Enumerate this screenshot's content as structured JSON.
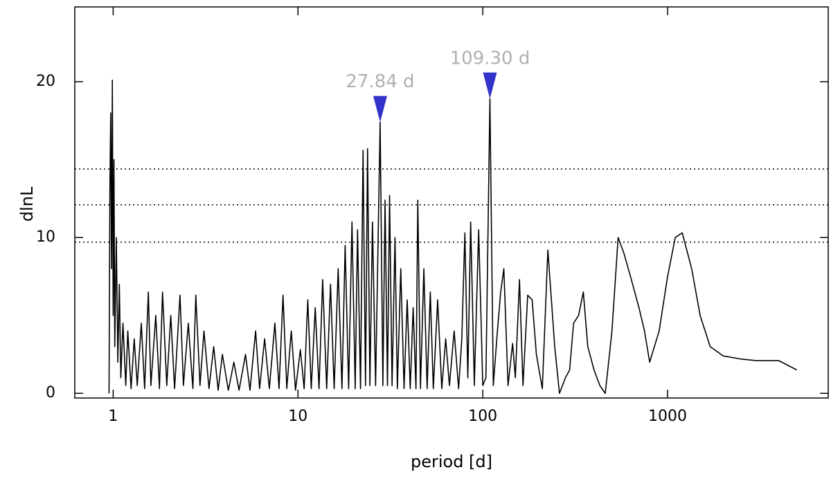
{
  "chart_data": {
    "type": "line",
    "xlabel": "period [d]",
    "ylabel": "dlnL",
    "xscale": "log",
    "color": "#000000",
    "xlim": [
      0.62,
      7400
    ],
    "ylim": [
      -0.3,
      24.8
    ],
    "xticks": [
      1,
      10,
      100,
      1000
    ],
    "yticks": [
      0,
      10,
      20
    ],
    "thresholds": [
      9.7,
      12.1,
      14.4
    ],
    "annotations": [
      {
        "label": "27.84 d",
        "x": 27.84,
        "y": 17.4,
        "color": "#3333cc"
      },
      {
        "label": "109.30 d",
        "x": 109.3,
        "y": 18.9,
        "color": "#3333cc"
      }
    ],
    "x": [
      0.95,
      0.96,
      0.97,
      0.98,
      0.99,
      1.0,
      1.01,
      1.02,
      1.04,
      1.06,
      1.08,
      1.1,
      1.13,
      1.17,
      1.2,
      1.25,
      1.3,
      1.35,
      1.42,
      1.48,
      1.55,
      1.6,
      1.7,
      1.78,
      1.85,
      1.95,
      2.05,
      2.15,
      2.3,
      2.4,
      2.55,
      2.7,
      2.8,
      2.95,
      3.1,
      3.3,
      3.5,
      3.7,
      3.9,
      4.2,
      4.5,
      4.8,
      5.2,
      5.5,
      5.9,
      6.2,
      6.6,
      7.0,
      7.5,
      7.9,
      8.3,
      8.7,
      9.2,
      9.7,
      10.3,
      10.8,
      11.3,
      11.8,
      12.4,
      13,
      13.6,
      14.3,
      15,
      15.7,
      16.5,
      17.3,
      18,
      18.8,
      19.6,
      20.4,
      21,
      21.8,
      22.5,
      23.2,
      23.8,
      24.5,
      25.3,
      26.3,
      27.84,
      28.8,
      29.6,
      30.5,
      31.3,
      32.3,
      33.5,
      34.5,
      36,
      37.5,
      39,
      40.5,
      42,
      43.5,
      44.5,
      46,
      48,
      50,
      52,
      54,
      57,
      60,
      63,
      66,
      70,
      74,
      77,
      80,
      83,
      86,
      90,
      95,
      100,
      104,
      109.3,
      114,
      120,
      125,
      130,
      137,
      145,
      150,
      158,
      165,
      175,
      185,
      195,
      210,
      225,
      245,
      260,
      280,
      295,
      310,
      330,
      350,
      370,
      400,
      430,
      460,
      500,
      540,
      580,
      630,
      700,
      750,
      800,
      900,
      1000,
      1100,
      1200,
      1350,
      1500,
      1700,
      2000,
      2500,
      3000,
      4000,
      5000
    ],
    "values": [
      0,
      13,
      18,
      8,
      20.1,
      5,
      15,
      3,
      10,
      2,
      7,
      1,
      4.5,
      0.5,
      4,
      0.3,
      3.5,
      0.5,
      4.5,
      0.3,
      6.5,
      0.5,
      5,
      0.3,
      6.5,
      0.5,
      5,
      0.3,
      6.3,
      0.5,
      4.5,
      0.3,
      6.3,
      0.5,
      4,
      0.3,
      3,
      0.2,
      2.5,
      0.2,
      2,
      0.2,
      2.5,
      0.2,
      4,
      0.3,
      3.5,
      0.3,
      4.5,
      0.3,
      6.3,
      0.3,
      4,
      0.2,
      2.8,
      0.3,
      6,
      0.3,
      5.5,
      0.3,
      7.3,
      0.3,
      7,
      0.3,
      8,
      0.3,
      9.5,
      0.3,
      11,
      0.3,
      10.5,
      0.3,
      15.6,
      0.5,
      15.7,
      0.5,
      11,
      0.5,
      17.4,
      0.5,
      12.4,
      0.5,
      12.7,
      0.5,
      10,
      0.3,
      8,
      0.3,
      6,
      0.3,
      5.5,
      0.3,
      12.4,
      0.3,
      8,
      0.3,
      6.5,
      0.3,
      6,
      0.3,
      3.5,
      0.5,
      4,
      0.3,
      3.5,
      10.3,
      1,
      11,
      0.5,
      10.5,
      0.5,
      1,
      18.9,
      0.5,
      4,
      6.5,
      8,
      0.5,
      3.2,
      1,
      7.3,
      0.5,
      6.3,
      6,
      2.5,
      0.3,
      9.2,
      3,
      0,
      1,
      1.5,
      4.5,
      5,
      6.5,
      3,
      1.5,
      0.5,
      0,
      4,
      10,
      9,
      7.5,
      5.5,
      4,
      2,
      4,
      7.5,
      10,
      10.3,
      8,
      5,
      3,
      2.4,
      2.2,
      2.1,
      2.1,
      1.5
    ]
  }
}
